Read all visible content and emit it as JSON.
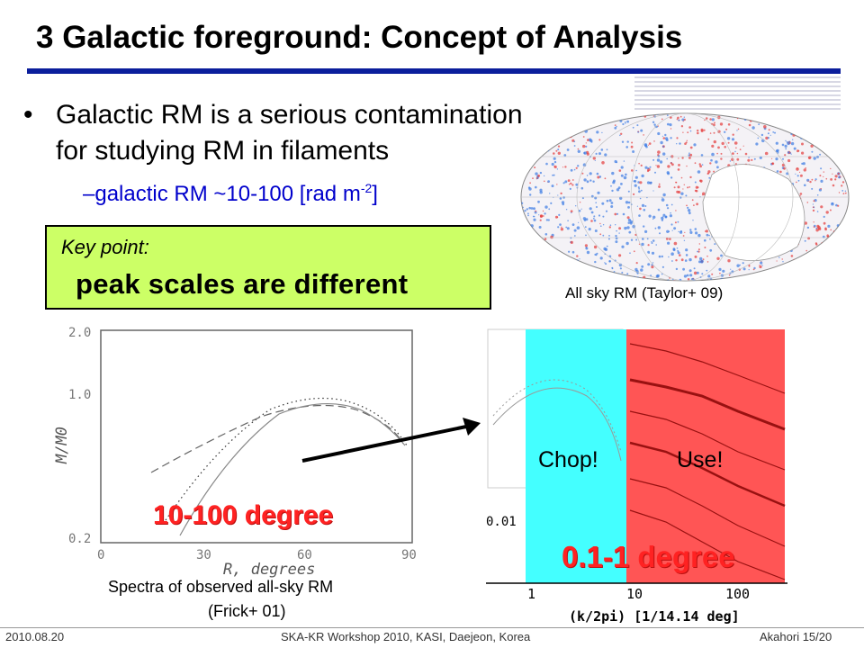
{
  "slide": {
    "title": "3 Galactic foreground: Concept of Analysis",
    "bullet1_line1": "Galactic RM is a serious contamination",
    "bullet1_line2": "for studying RM in filaments",
    "bullet2_prefix": "–galactic RM ~10-100 [rad m",
    "bullet2_sup": "-2",
    "bullet2_suffix": "]",
    "key_point_label": "Key point:",
    "key_point_text": "peak scales are different",
    "sky_caption": "All sky RM (Taylor+ 09)",
    "spectra_caption_line1": "Spectra of observed all-sky RM",
    "spectra_caption_line2": "(Frick+ 01)",
    "chop_label": "Chop!",
    "use_label": "Use!",
    "left_scale": "10-100 degree",
    "right_scale": "0.1-1 degree"
  },
  "left_plot": {
    "y_ticks": [
      "2.0",
      "1.0",
      "0.2"
    ],
    "x_ticks": [
      "0",
      "30",
      "60",
      "90"
    ],
    "ylabel": "M/M0",
    "xlabel": "R, degrees"
  },
  "right_plot": {
    "x_ticks": [
      "1",
      "10",
      "100"
    ],
    "y_tick": "0.01",
    "xlabel": "(k/2pi) [1/14.14 deg]"
  },
  "footer": {
    "date": "2010.08.20",
    "event": "SKA-KR Workshop 2010, KASI, Daejeon, Korea",
    "page": "Akahori 15/20"
  },
  "colors": {
    "title_rule": "#0b1e9c",
    "key_box": "#ccff66",
    "chop_region": "#44ffff",
    "use_region": "#ff5555",
    "highlight_text": "#ff2222"
  }
}
